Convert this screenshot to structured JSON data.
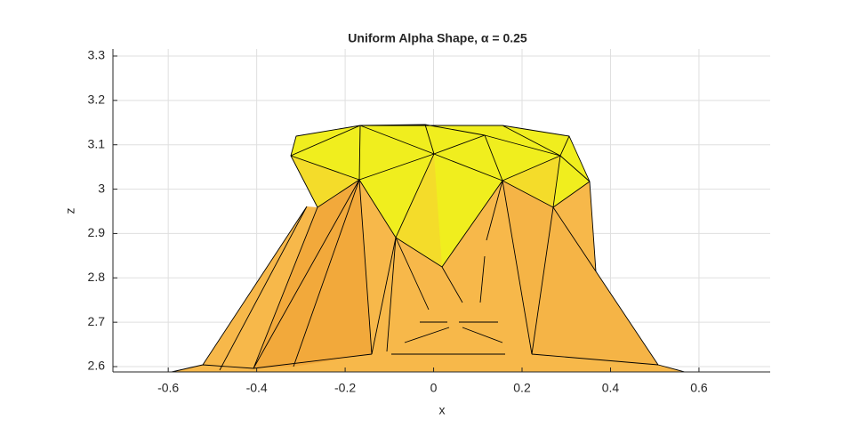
{
  "chart_data": {
    "type": "surface",
    "title": "Uniform Alpha Shape, α = 0.25",
    "x_label": "x",
    "y_label": "z",
    "xlim": [
      -0.725,
      0.761
    ],
    "ylim": [
      2.588,
      3.316
    ],
    "xticks": [
      -0.6,
      -0.4,
      -0.2,
      0,
      0.2,
      0.4,
      0.6
    ],
    "yticks": [
      2.6,
      2.7,
      2.8,
      2.9,
      3,
      3.1,
      3.2,
      3.3
    ],
    "grid": true
  }
}
